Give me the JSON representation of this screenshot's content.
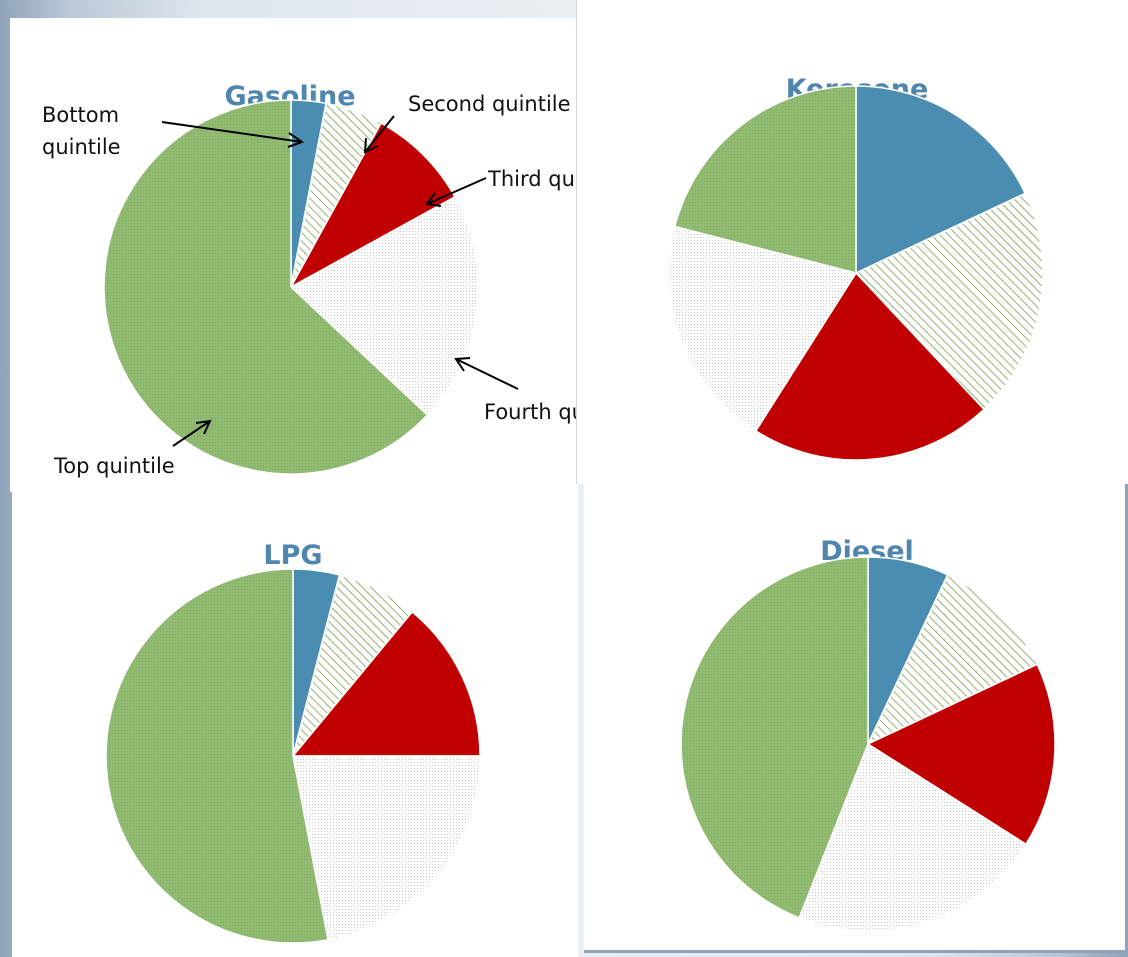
{
  "chart_data": [
    {
      "type": "pie",
      "title": "Gasoline",
      "categories": [
        "Bottom quintile",
        "Second quintile",
        "Third quintile",
        "Fourth quintile",
        "Top quintile"
      ],
      "values": [
        3,
        5,
        9,
        20,
        63
      ],
      "callouts": {
        "bottom": "Bottom",
        "bottom2": "quintile",
        "second": "Second quintile",
        "third": "Third quintile",
        "fourth": "Fourth quintile",
        "top": "Top quintile"
      }
    },
    {
      "type": "pie",
      "title": "Kerosene",
      "categories": [
        "Bottom quintile",
        "Second quintile",
        "Third quintile",
        "Fourth quintile",
        "Top quintile"
      ],
      "values": [
        18,
        20,
        21,
        20,
        21
      ]
    },
    {
      "type": "pie",
      "title": "LPG",
      "categories": [
        "Bottom quintile",
        "Second quintile",
        "Third quintile",
        "Fourth quintile",
        "Top quintile"
      ],
      "values": [
        4,
        7,
        14,
        22,
        53
      ]
    },
    {
      "type": "pie",
      "title": "Diesel",
      "categories": [
        "Bottom quintile",
        "Second quintile",
        "Third quintile",
        "Fourth quintile",
        "Top quintile"
      ],
      "values": [
        7,
        11,
        16,
        22,
        44
      ]
    }
  ],
  "colors": {
    "bottom": "#4a8db0",
    "second_hatch": "#7aa052",
    "third": "#c00000",
    "fourth_dots": "#c8c8c8",
    "top": "#92bb72",
    "title": "#4f86b0"
  }
}
